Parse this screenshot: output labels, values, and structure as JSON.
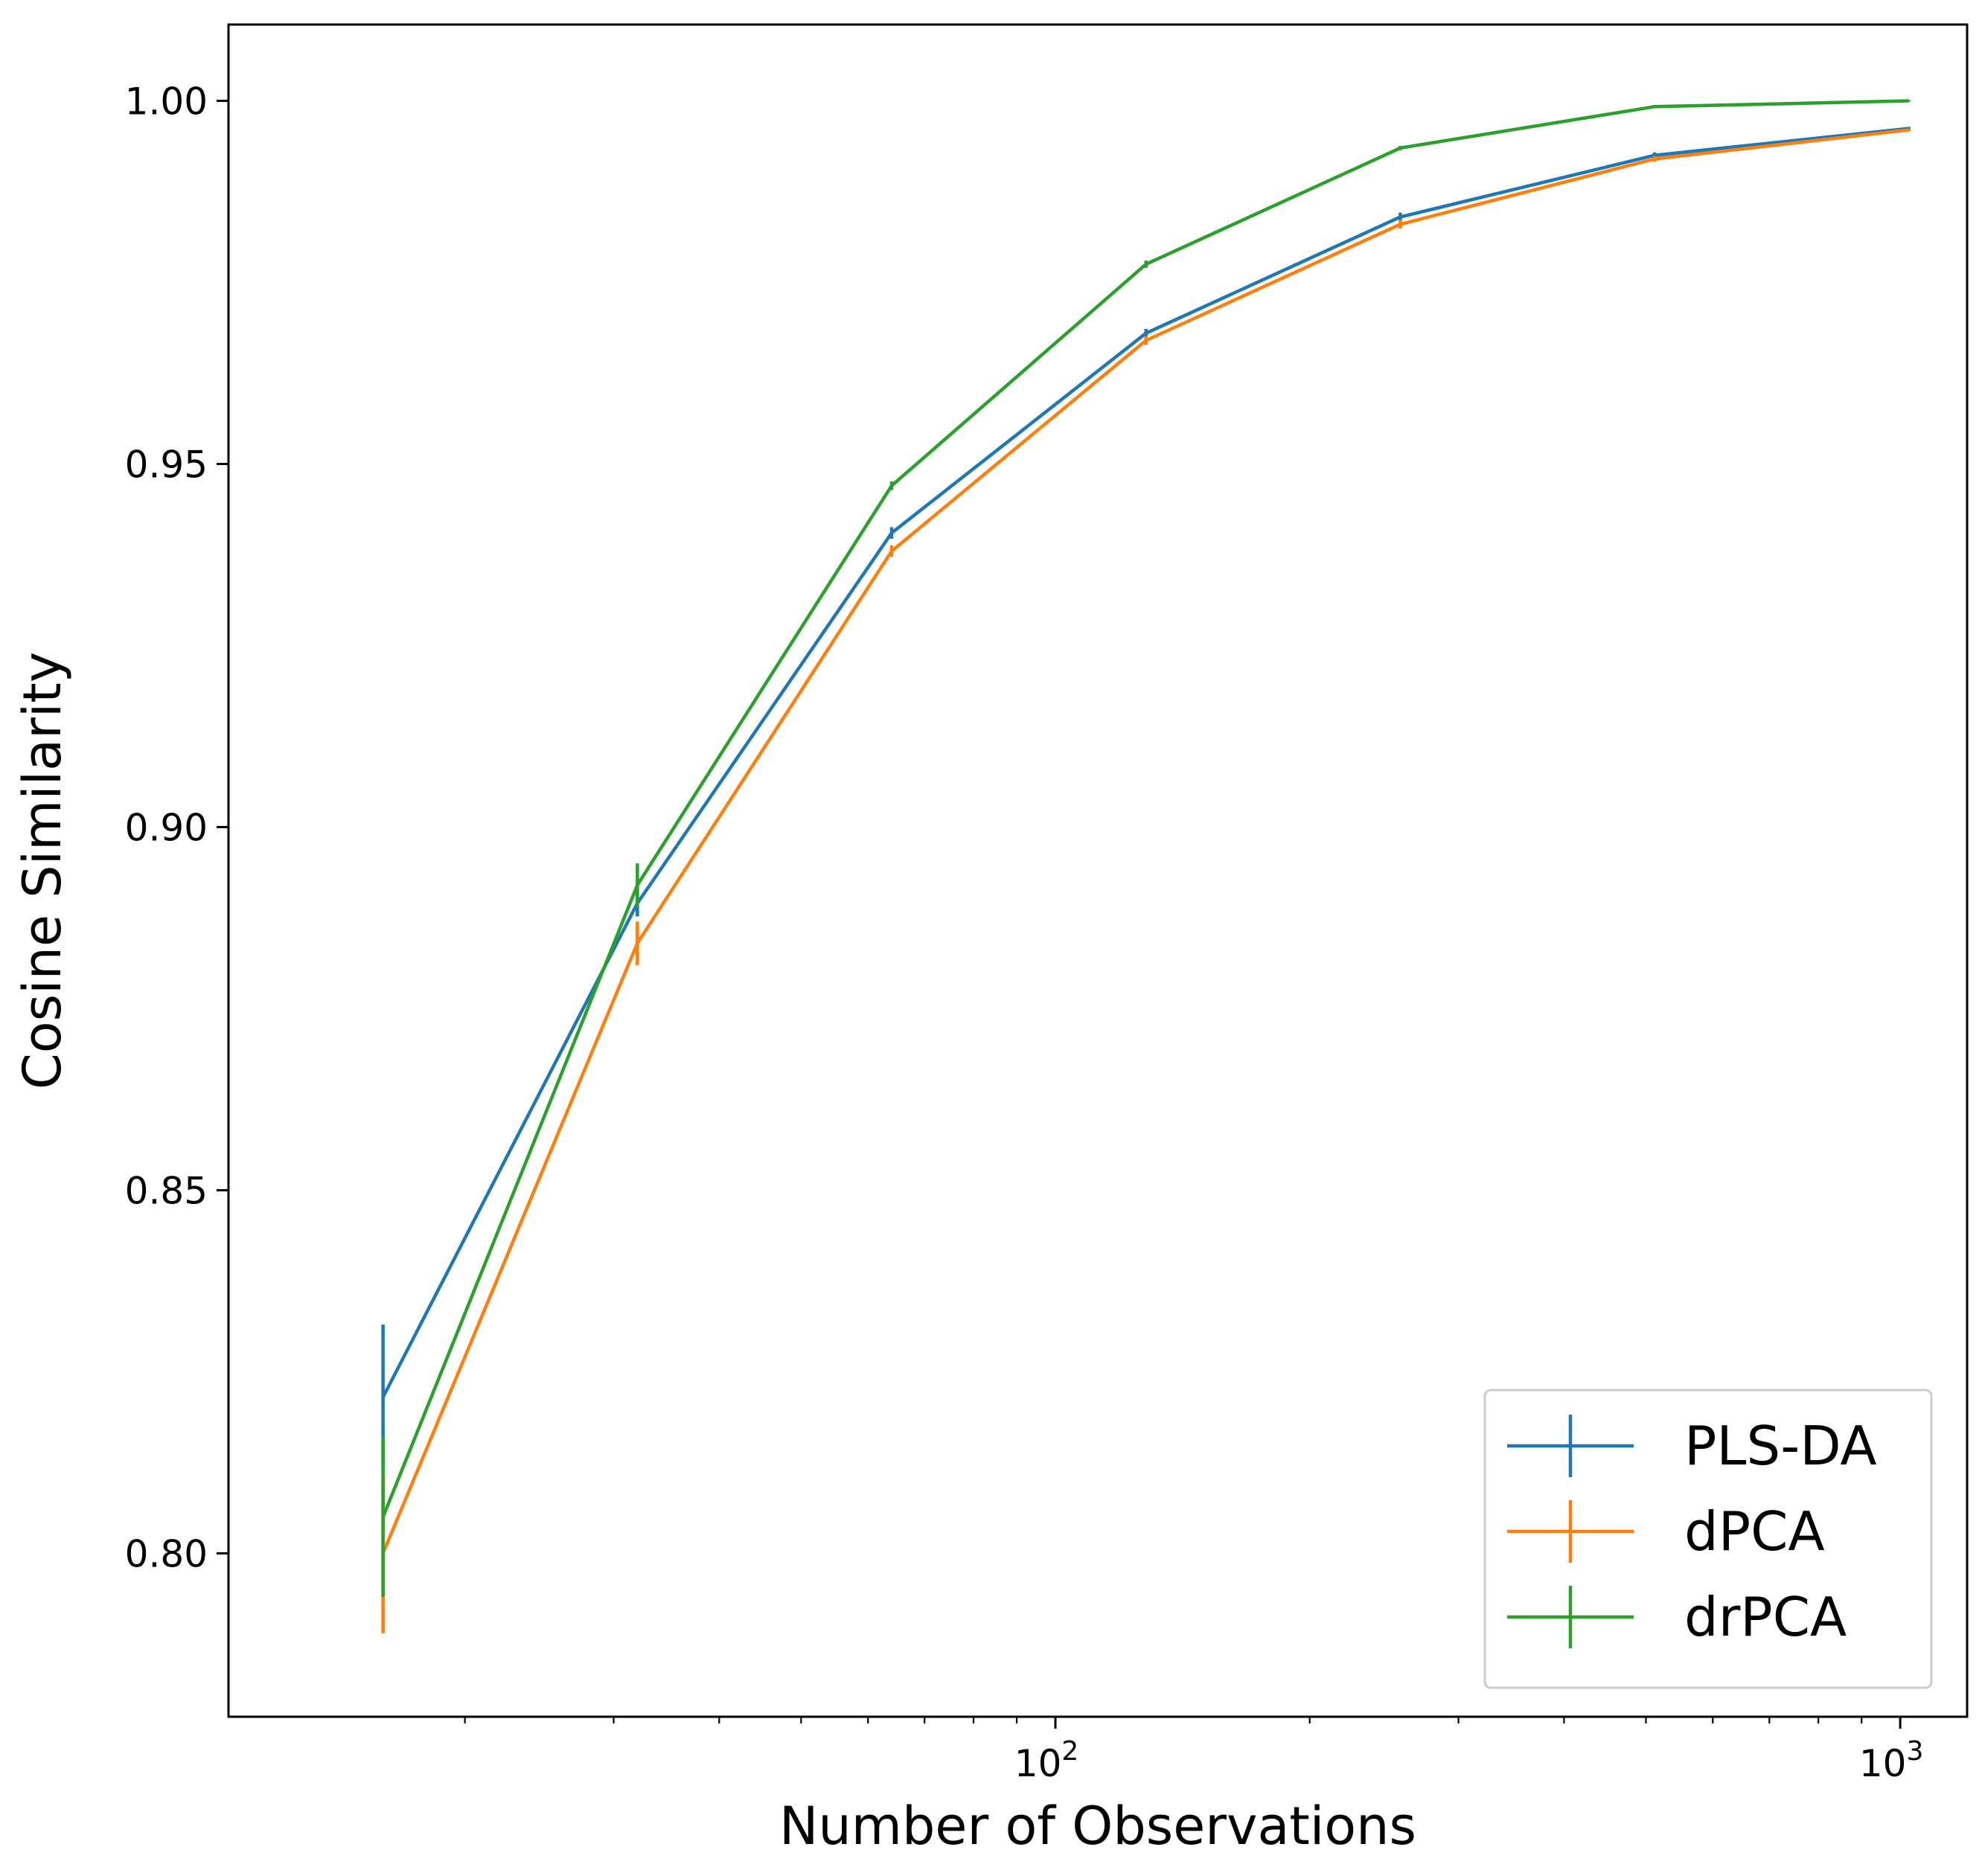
{
  "chart_data": {
    "type": "line",
    "xscale": "log",
    "xlabel": "Number of Observations",
    "ylabel": "Cosine Similarity",
    "xlim": [
      10.5,
      1200
    ],
    "ylim": [
      0.7775,
      1.0105
    ],
    "yticks": [
      {
        "value": 0.8,
        "label": "0.80"
      },
      {
        "value": 0.85,
        "label": "0.85"
      },
      {
        "value": 0.9,
        "label": "0.90"
      },
      {
        "value": 0.95,
        "label": "0.95"
      },
      {
        "value": 1.0,
        "label": "1.00"
      }
    ],
    "xticks_major": [
      {
        "value": 100,
        "base": "10",
        "exp": "2"
      },
      {
        "value": 1000,
        "base": "10",
        "exp": "3"
      }
    ],
    "xticks_minor": [
      20,
      30,
      40,
      50,
      60,
      70,
      80,
      90,
      200,
      300,
      400,
      500,
      600,
      700,
      800,
      900
    ],
    "x": [
      16,
      32,
      64,
      128,
      256,
      512,
      1024
    ],
    "series": [
      {
        "name": "PLS-DA",
        "color": "#1f77b4",
        "values": [
          0.8215,
          0.8895,
          0.9405,
          0.968,
          0.984,
          0.9925,
          0.9962
        ],
        "errors": [
          0.01,
          0.0018,
          0.0008,
          0.0006,
          0.0006,
          0.0004,
          0.0002
        ]
      },
      {
        "name": "dPCA",
        "color": "#ff7f0e",
        "values": [
          0.8,
          0.884,
          0.938,
          0.967,
          0.983,
          0.992,
          0.996
        ],
        "errors": [
          0.011,
          0.003,
          0.0008,
          0.0006,
          0.0006,
          0.0004,
          0.0002
        ]
      },
      {
        "name": "drPCA",
        "color": "#2ca02c",
        "values": [
          0.805,
          0.892,
          0.947,
          0.9775,
          0.9935,
          0.9992,
          1.0
        ],
        "errors": [
          0.011,
          0.003,
          0.0006,
          0.0005,
          0.0003,
          0.0002,
          0.0001
        ]
      }
    ],
    "legend": {
      "position": "lower-right"
    },
    "grid": false
  }
}
